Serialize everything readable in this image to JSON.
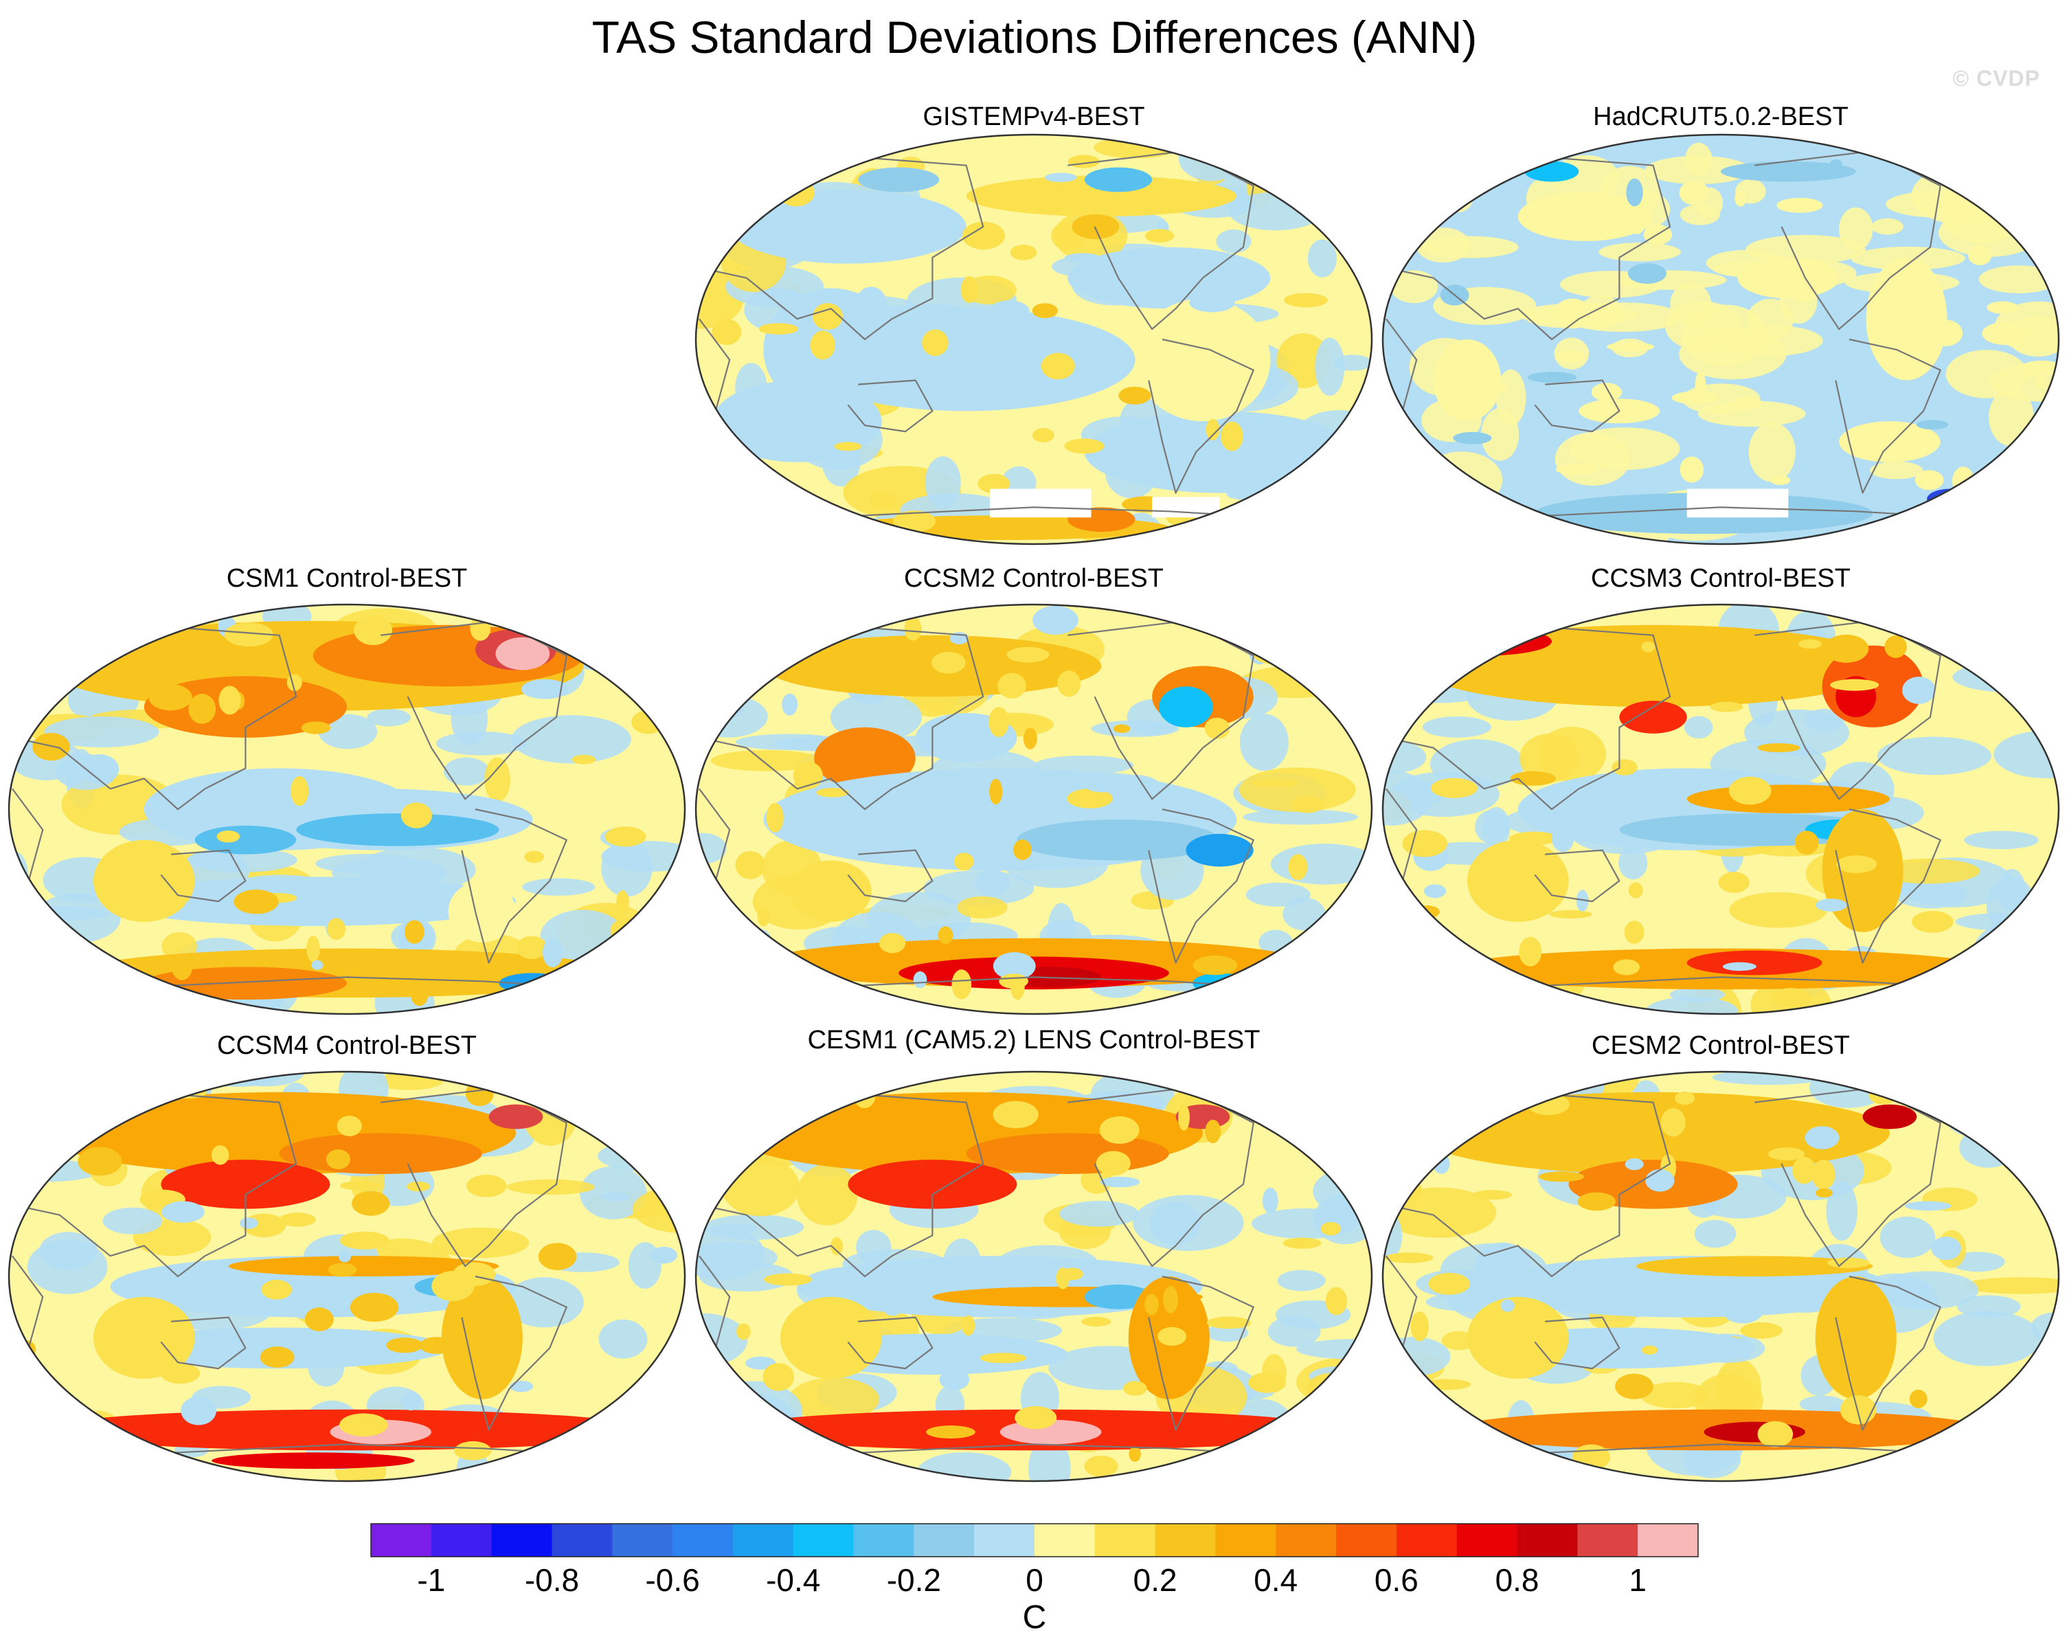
{
  "title": "TAS Standard Deviations Differences (ANN)",
  "watermark": "© CVDP",
  "chart_data": {
    "type": "heatmap",
    "title": "TAS Standard Deviations Differences (ANN)",
    "projection": "Robinson-like global map, Pacific-centered",
    "variable": "TAS",
    "statistic": "standard deviation difference (dataset minus BEST)",
    "season": "ANN",
    "units": "C",
    "panels": [
      {
        "id": "gistemp",
        "title": "GISTEMPv4-BEST",
        "dominant": "near zero (-0.1 to 0.1) with weak positive tropics"
      },
      {
        "id": "hadcrut",
        "title": "HadCRUT5.0.2-BEST",
        "dominant": "mostly -0.1 to 0, weak negative"
      },
      {
        "id": "csm1",
        "title": "CSM1 Control-BEST",
        "dominant": "positive high latitudes, negative eastern equatorial Pacific"
      },
      {
        "id": "ccsm2",
        "title": "CCSM2 Control-BEST",
        "dominant": "strong positive Southern Ocean, negative tropics"
      },
      {
        "id": "ccsm3",
        "title": "CCSM3 Control-BEST",
        "dominant": "positive North Pacific/Atlantic, mixed tropics"
      },
      {
        "id": "ccsm4",
        "title": "CCSM4 Control-BEST",
        "dominant": "strong positive Southern Ocean and North Pacific"
      },
      {
        "id": "cesm1",
        "title": "CESM1 (CAM5.2) LENS Control-BEST",
        "dominant": "strong positive Southern Ocean and North Pacific"
      },
      {
        "id": "cesm2",
        "title": "CESM2 Control-BEST",
        "dominant": "moderate positive, mixed"
      }
    ],
    "colorbar": {
      "label": "C",
      "levels": [
        -1.1,
        -1,
        -0.9,
        -0.8,
        -0.7,
        -0.6,
        -0.5,
        -0.4,
        -0.3,
        -0.2,
        -0.1,
        0,
        0.1,
        0.2,
        0.3,
        0.4,
        0.5,
        0.6,
        0.7,
        0.8,
        0.9,
        1,
        1.1
      ],
      "tick_labels": [
        "-1",
        "-0.8",
        "-0.6",
        "-0.4",
        "-0.2",
        "0",
        "0.2",
        "0.4",
        "0.6",
        "0.8",
        "1"
      ],
      "colors": [
        "#7b1fe8",
        "#3e1ef0",
        "#0a10f5",
        "#2a48dc",
        "#3470e0",
        "#2d84f0",
        "#1d9ff0",
        "#10c0f8",
        "#58c0ee",
        "#90cdea",
        "#b4def4",
        "#fdf7a0",
        "#fbe14e",
        "#f8c41e",
        "#f9a806",
        "#f88608",
        "#f85a0a",
        "#f82a0a",
        "#e80206",
        "#c80008",
        "#dc4444",
        "#f8b8b8"
      ]
    }
  }
}
